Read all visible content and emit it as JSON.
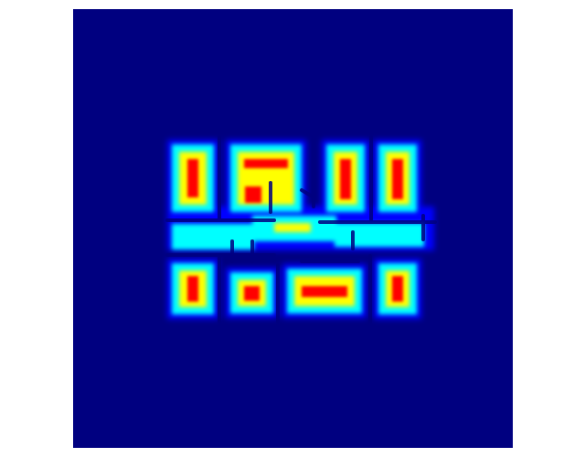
{
  "figure": {
    "background": "#ffffff",
    "colormap": "jet",
    "colormap_stops": [
      "#000080",
      "#0000ff",
      "#00ffff",
      "#ffff00",
      "#ff0000"
    ],
    "image_background": "#000080"
  }
}
